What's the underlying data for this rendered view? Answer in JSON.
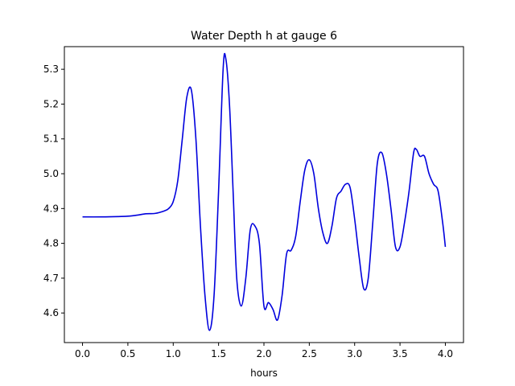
{
  "chart_data": {
    "type": "line",
    "title": "Water Depth h at gauge 6",
    "xlabel": "hours",
    "ylabel": "",
    "xlim": [
      -0.2,
      4.2
    ],
    "ylim": [
      4.515,
      5.365
    ],
    "xticks": [
      0.0,
      0.5,
      1.0,
      1.5,
      2.0,
      2.5,
      3.0,
      3.5,
      4.0
    ],
    "xtick_labels": [
      "0.0",
      "0.5",
      "1.0",
      "1.5",
      "2.0",
      "2.5",
      "3.0",
      "3.5",
      "4.0"
    ],
    "yticks": [
      4.6,
      4.7,
      4.8,
      4.9,
      5.0,
      5.1,
      5.2,
      5.3
    ],
    "ytick_labels": [
      "4.6",
      "4.7",
      "4.8",
      "4.9",
      "5.0",
      "5.1",
      "5.2",
      "5.3"
    ],
    "grid": false,
    "color": "#0000dd",
    "series": [
      {
        "x": [
          0.0,
          0.2,
          0.4,
          0.5,
          0.6,
          0.7,
          0.8,
          0.9,
          0.95,
          1.0,
          1.05,
          1.1,
          1.15,
          1.2,
          1.25,
          1.3,
          1.35,
          1.4,
          1.45,
          1.5,
          1.55,
          1.58,
          1.62,
          1.66,
          1.7,
          1.75,
          1.8,
          1.85,
          1.9,
          1.95,
          2.0,
          2.05,
          2.1,
          2.15,
          2.2,
          2.25,
          2.3,
          2.35,
          2.4,
          2.45,
          2.5,
          2.55,
          2.6,
          2.65,
          2.7,
          2.75,
          2.8,
          2.85,
          2.9,
          2.95,
          3.0,
          3.05,
          3.1,
          3.15,
          3.2,
          3.25,
          3.3,
          3.35,
          3.4,
          3.45,
          3.5,
          3.55,
          3.6,
          3.65,
          3.68,
          3.72,
          3.77,
          3.82,
          3.87,
          3.92,
          3.97,
          4.0
        ],
        "y": [
          4.876,
          4.876,
          4.877,
          4.878,
          4.881,
          4.885,
          4.886,
          4.893,
          4.9,
          4.92,
          4.98,
          5.1,
          5.22,
          5.24,
          5.1,
          4.85,
          4.65,
          4.55,
          4.65,
          4.95,
          5.3,
          5.33,
          5.2,
          4.95,
          4.7,
          4.62,
          4.7,
          4.84,
          4.85,
          4.8,
          4.62,
          4.63,
          4.61,
          4.58,
          4.65,
          4.77,
          4.78,
          4.82,
          4.92,
          5.01,
          5.04,
          5.0,
          4.9,
          4.83,
          4.8,
          4.85,
          4.93,
          4.95,
          4.97,
          4.96,
          4.87,
          4.76,
          4.67,
          4.7,
          4.86,
          5.03,
          5.06,
          5.0,
          4.9,
          4.79,
          4.79,
          4.86,
          4.95,
          5.06,
          5.07,
          5.05,
          5.05,
          5.0,
          4.97,
          4.95,
          4.86,
          4.79
        ]
      }
    ]
  }
}
